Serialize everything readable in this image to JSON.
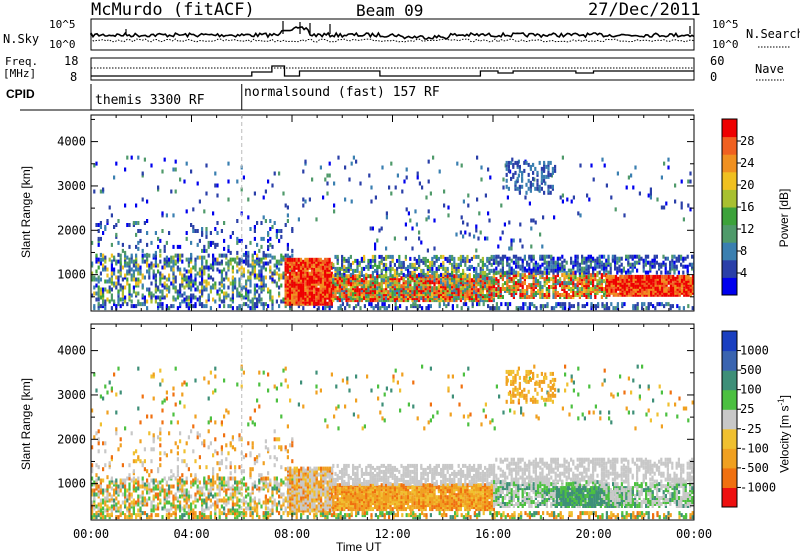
{
  "header": {
    "station": "McMurdo (fitACF)",
    "beam": "Beam 09",
    "date": "27/Dec/2011"
  },
  "param_panel": {
    "nsky_label": "N.Sky",
    "nsky_ticks": [
      "10^5",
      "10^0"
    ],
    "nsearch_label": "N.Search",
    "freq_label_line1": "Freq.",
    "freq_label_line2": "[MHz]",
    "freq_ticks": [
      "18",
      "8"
    ],
    "nave_ticks": [
      "60",
      "0"
    ],
    "nave_label": "Nave",
    "cpid_label": "CPID",
    "modes": [
      {
        "name": "themis 3300 RF",
        "start_hour": 0,
        "end_hour": 6
      },
      {
        "name": "normalsound (fast) 157 RF",
        "start_hour": 6,
        "end_hour": 24
      }
    ]
  },
  "chart_data": [
    {
      "type": "heatmap",
      "title": "Power",
      "xlabel": "",
      "ylabel": "Slant Range [km]",
      "ylim": [
        180,
        4600
      ],
      "yticks": [
        1000,
        2000,
        3000,
        4000
      ],
      "colorbar_label": "Power [dB]",
      "colorbar_ticks": [
        "4",
        "8",
        "12",
        "16",
        "20",
        "24",
        "28"
      ],
      "colorbar_colors": [
        "#0000ee",
        "#2a3fa8",
        "#3a7fb0",
        "#4f9a6a",
        "#3ca23a",
        "#a8c030",
        "#f0c020",
        "#f09020",
        "#f06020",
        "#ee0000"
      ],
      "description_regions": [
        {
          "x0": 0,
          "x1": 8,
          "y0": 300,
          "y1": 1300,
          "level": "low"
        },
        {
          "x0": 7.5,
          "x1": 9.5,
          "y0": 300,
          "y1": 1300,
          "level": "high"
        },
        {
          "x0": 9.5,
          "x1": 16,
          "y0": 400,
          "y1": 900,
          "level": "high"
        },
        {
          "x0": 20.5,
          "x1": 24,
          "y0": 500,
          "y1": 900,
          "level": "high"
        }
      ]
    },
    {
      "type": "heatmap",
      "title": "Velocity",
      "xlabel": "Time UT",
      "ylabel": "Slant Range [km]",
      "ylim": [
        180,
        4600
      ],
      "yticks": [
        1000,
        2000,
        3000,
        4000
      ],
      "xticks": [
        "00:00",
        "04:00",
        "08:00",
        "12:00",
        "16:00",
        "20:00",
        "00:00"
      ],
      "colorbar_label": "Velocity [m s^-1]",
      "colorbar_ticks": [
        "1000",
        "500",
        "100",
        "25",
        "-25",
        "-100",
        "-500",
        "-1000"
      ],
      "colorbar_colors": [
        "#1a3fc0",
        "#3a64b0",
        "#3e8f78",
        "#4cc040",
        "#c8c8c8",
        "#f0c030",
        "#f0a020",
        "#f07010",
        "#ee1010"
      ]
    }
  ]
}
